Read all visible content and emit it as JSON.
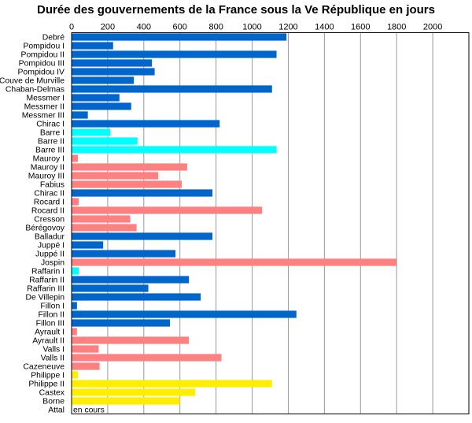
{
  "chart_data": {
    "type": "bar",
    "orientation": "horizontal",
    "title": "Durée des gouvernements de la France sous la Ve République en jours",
    "xlim": [
      0,
      2200
    ],
    "x_ticks": [
      0,
      200,
      400,
      600,
      800,
      1000,
      1200,
      1400,
      1600,
      1800,
      2000
    ],
    "grid": true,
    "palette": {
      "blue": "#0066cc",
      "cyan": "#00ffff",
      "pink": "#ff8080",
      "yellow": "#ffee00",
      "grid": "#999999",
      "axis": "#000000"
    },
    "bars": [
      {
        "label": "Debré",
        "value": 1190,
        "color": "blue"
      },
      {
        "label": "Pompidou I",
        "value": 230,
        "color": "blue"
      },
      {
        "label": "Pompidou II",
        "value": 1135,
        "color": "blue"
      },
      {
        "label": "Pompidou III",
        "value": 445,
        "color": "blue"
      },
      {
        "label": "Pompidou IV",
        "value": 460,
        "color": "blue"
      },
      {
        "label": "Couve de Murville",
        "value": 345,
        "color": "blue"
      },
      {
        "label": "Chaban-Delmas",
        "value": 1110,
        "color": "blue"
      },
      {
        "label": "Messmer I",
        "value": 265,
        "color": "blue"
      },
      {
        "label": "Messmer II",
        "value": 330,
        "color": "blue"
      },
      {
        "label": "Messmer III",
        "value": 90,
        "color": "blue"
      },
      {
        "label": "Chirac I",
        "value": 820,
        "color": "blue"
      },
      {
        "label": "Barre I",
        "value": 215,
        "color": "cyan"
      },
      {
        "label": "Barre II",
        "value": 365,
        "color": "cyan"
      },
      {
        "label": "Barre III",
        "value": 1135,
        "color": "cyan"
      },
      {
        "label": "Mauroy I",
        "value": 35,
        "color": "pink"
      },
      {
        "label": "Mauroy II",
        "value": 640,
        "color": "pink"
      },
      {
        "label": "Mauroy III",
        "value": 480,
        "color": "pink"
      },
      {
        "label": "Fabius",
        "value": 610,
        "color": "pink"
      },
      {
        "label": "Chirac II",
        "value": 780,
        "color": "blue"
      },
      {
        "label": "Rocard I",
        "value": 40,
        "color": "pink"
      },
      {
        "label": "Rocard II",
        "value": 1055,
        "color": "pink"
      },
      {
        "label": "Cresson",
        "value": 325,
        "color": "pink"
      },
      {
        "label": "Bérégovoy",
        "value": 360,
        "color": "pink"
      },
      {
        "label": "Balladur",
        "value": 780,
        "color": "blue"
      },
      {
        "label": "Juppé I",
        "value": 175,
        "color": "blue"
      },
      {
        "label": "Juppé II",
        "value": 575,
        "color": "blue"
      },
      {
        "label": "Jospin",
        "value": 1800,
        "color": "pink"
      },
      {
        "label": "Raffarin I",
        "value": 40,
        "color": "cyan"
      },
      {
        "label": "Raffarin II",
        "value": 650,
        "color": "blue"
      },
      {
        "label": "Raffarin III",
        "value": 425,
        "color": "blue"
      },
      {
        "label": "De Villepin",
        "value": 715,
        "color": "blue"
      },
      {
        "label": "Fillon I",
        "value": 30,
        "color": "blue"
      },
      {
        "label": "Fillon II",
        "value": 1245,
        "color": "blue"
      },
      {
        "label": "Fillon III",
        "value": 545,
        "color": "blue"
      },
      {
        "label": "Ayrault I",
        "value": 30,
        "color": "pink"
      },
      {
        "label": "Ayrault II",
        "value": 650,
        "color": "pink"
      },
      {
        "label": "Valls I",
        "value": 150,
        "color": "pink"
      },
      {
        "label": "Valls II",
        "value": 830,
        "color": "pink"
      },
      {
        "label": "Cazeneuve",
        "value": 155,
        "color": "pink"
      },
      {
        "label": "Philippe I",
        "value": 35,
        "color": "yellow"
      },
      {
        "label": "Philippe II",
        "value": 1110,
        "color": "yellow"
      },
      {
        "label": "Castex",
        "value": 685,
        "color": "yellow"
      },
      {
        "label": "Borne",
        "value": 600,
        "color": "yellow"
      },
      {
        "label": "Attal",
        "value": null,
        "color": "yellow",
        "note": "en cours"
      }
    ]
  }
}
